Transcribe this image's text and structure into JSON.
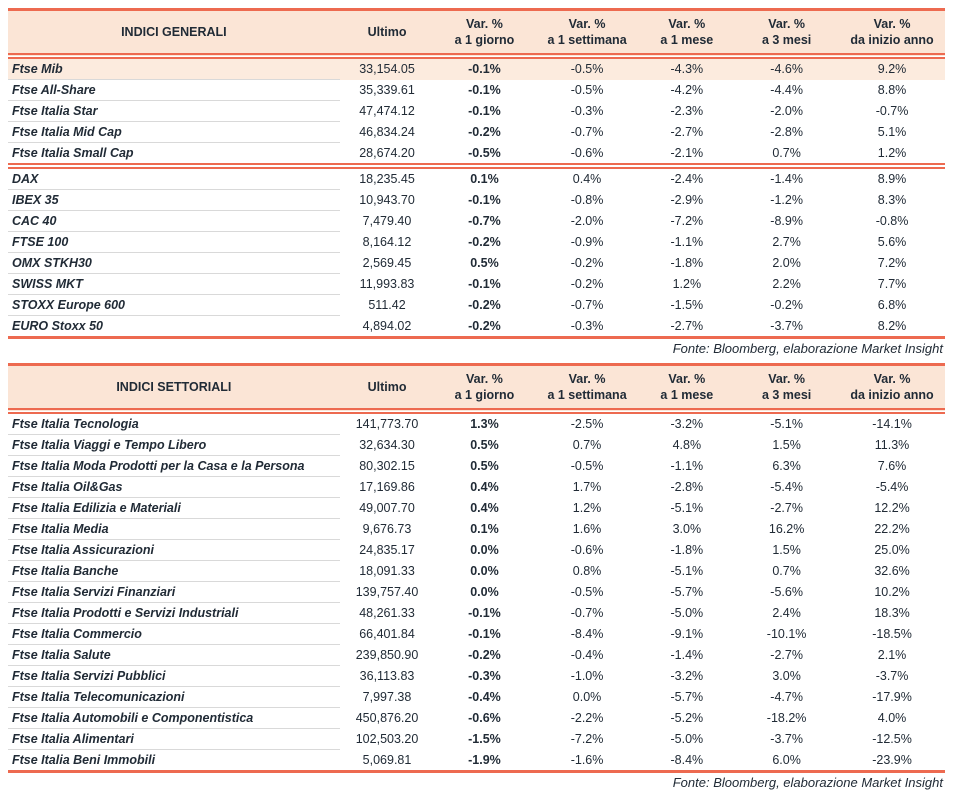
{
  "colors": {
    "accent": "#ED6A50",
    "header_bg": "#FBE5D6",
    "highlight_row_bg": "#FCEBDE",
    "row_separator": "#D9D9D9",
    "text": "#212B36"
  },
  "source_note": "Fonte: Bloomberg, elaborazione Market Insight",
  "tables": [
    {
      "title": "INDICI GENERALI",
      "ultimo_label": "Ultimo",
      "var_cols": [
        {
          "line1": "Var. %",
          "line2": "a 1 giorno"
        },
        {
          "line1": "Var. %",
          "line2": "a 1 settimana"
        },
        {
          "line1": "Var. %",
          "line2": "a 1 mese"
        },
        {
          "line1": "Var. %",
          "line2": "a 3 mesi"
        },
        {
          "line1": "Var. %",
          "line2": "da inizio anno"
        }
      ],
      "groups": [
        {
          "highlight_first_row": true,
          "rows": [
            [
              "Ftse Mib",
              "33,154.05",
              "-0.1%",
              "-0.5%",
              "-4.3%",
              "-4.6%",
              "9.2%"
            ],
            [
              "Ftse All-Share",
              "35,339.61",
              "-0.1%",
              "-0.5%",
              "-4.2%",
              "-4.4%",
              "8.8%"
            ],
            [
              "Ftse Italia Star",
              "47,474.12",
              "-0.1%",
              "-0.3%",
              "-2.3%",
              "-2.0%",
              "-0.7%"
            ],
            [
              "Ftse Italia Mid Cap",
              "46,834.24",
              "-0.2%",
              "-0.7%",
              "-2.7%",
              "-2.8%",
              "5.1%"
            ],
            [
              "Ftse Italia Small Cap",
              "28,674.20",
              "-0.5%",
              "-0.6%",
              "-2.1%",
              "0.7%",
              "1.2%"
            ]
          ]
        },
        {
          "highlight_first_row": false,
          "rows": [
            [
              "DAX",
              "18,235.45",
              "0.1%",
              "0.4%",
              "-2.4%",
              "-1.4%",
              "8.9%"
            ],
            [
              "IBEX 35",
              "10,943.70",
              "-0.1%",
              "-0.8%",
              "-2.9%",
              "-1.2%",
              "8.3%"
            ],
            [
              "CAC 40",
              "7,479.40",
              "-0.7%",
              "-2.0%",
              "-7.2%",
              "-8.9%",
              "-0.8%"
            ],
            [
              "FTSE 100",
              "8,164.12",
              "-0.2%",
              "-0.9%",
              "-1.1%",
              "2.7%",
              "5.6%"
            ],
            [
              "OMX STKH30",
              "2,569.45",
              "0.5%",
              "-0.2%",
              "-1.8%",
              "2.0%",
              "7.2%"
            ],
            [
              "SWISS MKT",
              "11,993.83",
              "-0.1%",
              "-0.2%",
              "1.2%",
              "2.2%",
              "7.7%"
            ],
            [
              "STOXX Europe 600",
              "511.42",
              "-0.2%",
              "-0.7%",
              "-1.5%",
              "-0.2%",
              "6.8%"
            ],
            [
              "EURO Stoxx 50",
              "4,894.02",
              "-0.2%",
              "-0.3%",
              "-2.7%",
              "-3.7%",
              "8.2%"
            ]
          ]
        }
      ],
      "source": "Fonte: Bloomberg, elaborazione Market Insight"
    },
    {
      "title": "INDICI SETTORIALI",
      "ultimo_label": "Ultimo",
      "var_cols": [
        {
          "line1": "Var. %",
          "line2": "a 1 giorno"
        },
        {
          "line1": "Var. %",
          "line2": "a 1 settimana"
        },
        {
          "line1": "Var. %",
          "line2": "a 1 mese"
        },
        {
          "line1": "Var. %",
          "line2": "a 3 mesi"
        },
        {
          "line1": "Var. %",
          "line2": "da inizio anno"
        }
      ],
      "groups": [
        {
          "highlight_first_row": false,
          "rows": [
            [
              "Ftse Italia Tecnologia",
              "141,773.70",
              "1.3%",
              "-2.5%",
              "-3.2%",
              "-5.1%",
              "-14.1%"
            ],
            [
              "Ftse Italia Viaggi e Tempo Libero",
              "32,634.30",
              "0.5%",
              "0.7%",
              "4.8%",
              "1.5%",
              "11.3%"
            ],
            [
              "Ftse Italia Moda Prodotti per la Casa e la Persona",
              "80,302.15",
              "0.5%",
              "-0.5%",
              "-1.1%",
              "6.3%",
              "7.6%"
            ],
            [
              "Ftse Italia Oil&Gas",
              "17,169.86",
              "0.4%",
              "1.7%",
              "-2.8%",
              "-5.4%",
              "-5.4%"
            ],
            [
              "Ftse Italia Edilizia e Materiali",
              "49,007.70",
              "0.4%",
              "1.2%",
              "-5.1%",
              "-2.7%",
              "12.2%"
            ],
            [
              "Ftse Italia Media",
              "9,676.73",
              "0.1%",
              "1.6%",
              "3.0%",
              "16.2%",
              "22.2%"
            ],
            [
              "Ftse Italia Assicurazioni",
              "24,835.17",
              "0.0%",
              "-0.6%",
              "-1.8%",
              "1.5%",
              "25.0%"
            ],
            [
              "Ftse Italia Banche",
              "18,091.33",
              "0.0%",
              "0.8%",
              "-5.1%",
              "0.7%",
              "32.6%"
            ],
            [
              "Ftse Italia Servizi Finanziari",
              "139,757.40",
              "0.0%",
              "-0.5%",
              "-5.7%",
              "-5.6%",
              "10.2%"
            ],
            [
              "Ftse Italia Prodotti e Servizi Industriali",
              "48,261.33",
              "-0.1%",
              "-0.7%",
              "-5.0%",
              "2.4%",
              "18.3%"
            ],
            [
              "Ftse Italia Commercio",
              "66,401.84",
              "-0.1%",
              "-8.4%",
              "-9.1%",
              "-10.1%",
              "-18.5%"
            ],
            [
              "Ftse Italia Salute",
              "239,850.90",
              "-0.2%",
              "-0.4%",
              "-1.4%",
              "-2.7%",
              "2.1%"
            ],
            [
              "Ftse Italia Servizi Pubblici",
              "36,113.83",
              "-0.3%",
              "-1.0%",
              "-3.2%",
              "3.0%",
              "-3.7%"
            ],
            [
              "Ftse Italia Telecomunicazioni",
              "7,997.38",
              "-0.4%",
              "0.0%",
              "-5.7%",
              "-4.7%",
              "-17.9%"
            ],
            [
              "Ftse Italia Automobili e Componentistica",
              "450,876.20",
              "-0.6%",
              "-2.2%",
              "-5.2%",
              "-18.2%",
              "4.0%"
            ],
            [
              "Ftse Italia Alimentari",
              "102,503.20",
              "-1.5%",
              "-7.2%",
              "-5.0%",
              "-3.7%",
              "-12.5%"
            ],
            [
              "Ftse Italia Beni Immobili",
              "5,069.81",
              "-1.9%",
              "-1.6%",
              "-8.4%",
              "6.0%",
              "-23.9%"
            ]
          ]
        }
      ],
      "source": "Fonte: Bloomberg, elaborazione Market Insight"
    }
  ]
}
